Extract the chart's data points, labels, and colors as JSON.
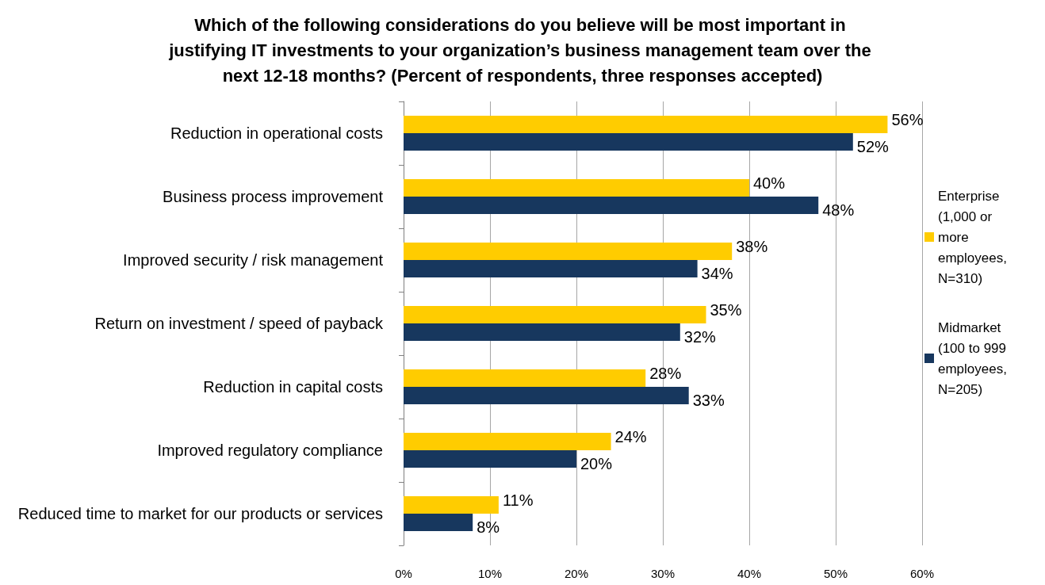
{
  "chart_data": {
    "type": "bar",
    "orientation": "horizontal",
    "title": "Which of the following considerations do you believe will be most important in justifying IT investments to your organization’s business management team over the next 12-18 months? (Percent of respondents, three responses accepted)",
    "categories": [
      "Reduction in operational costs",
      "Business process improvement",
      "Improved security / risk management",
      "Return on investment / speed of payback",
      "Reduction in capital costs",
      "Improved regulatory compliance",
      "Reduced time to market for our products or services"
    ],
    "series": [
      {
        "name": "Enterprise (1,000 or more employees, N=310)",
        "color": "#ffcc00",
        "values": [
          56,
          40,
          38,
          35,
          28,
          24,
          11
        ],
        "value_labels": [
          "56%",
          "40%",
          "38%",
          "35%",
          "28%",
          "24%",
          "11%"
        ]
      },
      {
        "name": "Midmarket (100 to 999 employees, N=205)",
        "color": "#17375e",
        "values": [
          52,
          48,
          34,
          32,
          33,
          20,
          8
        ],
        "value_labels": [
          "52%",
          "48%",
          "34%",
          "32%",
          "33%",
          "20%",
          "8%"
        ]
      }
    ],
    "xlim": [
      0,
      60
    ],
    "xticks": [
      {
        "value": 0,
        "label": "0%"
      },
      {
        "value": 10,
        "label": "10%"
      },
      {
        "value": 20,
        "label": "20%"
      },
      {
        "value": 30,
        "label": "30%"
      },
      {
        "value": 40,
        "label": "40%"
      },
      {
        "value": 50,
        "label": "50%"
      },
      {
        "value": 60,
        "label": "60%"
      }
    ],
    "grid": "x",
    "legend": "right"
  }
}
